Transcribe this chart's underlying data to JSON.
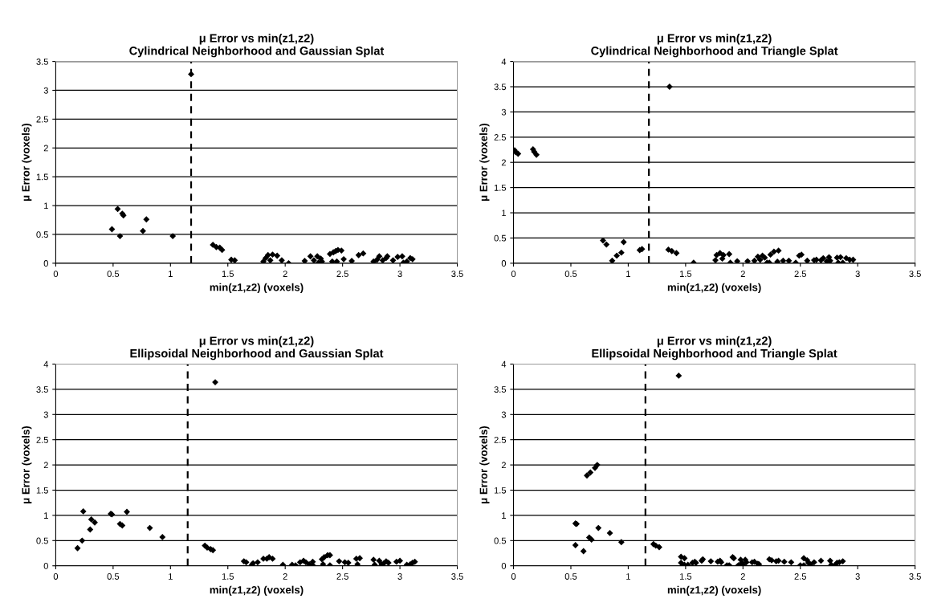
{
  "chart_data": [
    {
      "type": "scatter",
      "title": "μ Error vs min(z1,z2)",
      "subtitle": "Cylindrical Neighborhood and Gaussian Splat",
      "xlabel": "min(z1,z2) (voxels)",
      "ylabel": "μ Error (voxels)",
      "color": "#000000",
      "marker": "diamond",
      "grid": "y",
      "xlim": [
        0,
        3.5
      ],
      "xticks": [
        0,
        0.5,
        1,
        1.5,
        2,
        2.5,
        3,
        3.5
      ],
      "ylim": [
        0,
        3.5
      ],
      "yticks": [
        0,
        0.5,
        1,
        1.5,
        2,
        2.5,
        3,
        3.5
      ],
      "ref_lines": [
        {
          "axis": "x",
          "value": 1.18,
          "color": "#000000",
          "line_style": "dashed"
        }
      ],
      "x": [
        0.49,
        0.54,
        0.56,
        0.58,
        0.59,
        0.76,
        0.79,
        1.02,
        1.18,
        1.37,
        1.4,
        1.43,
        1.45,
        1.53,
        1.56,
        1.81,
        1.83,
        1.85,
        1.89,
        1.93,
        1.87,
        1.97,
        2.03,
        2.17,
        2.22,
        2.25,
        2.28,
        2.29,
        2.31,
        2.32,
        2.39,
        2.42,
        2.44,
        2.46,
        2.49,
        2.41,
        2.45,
        2.51,
        2.58,
        2.64,
        2.68,
        2.77,
        2.8,
        2.82,
        2.85,
        2.88,
        2.89,
        2.94,
        2.98,
        3.02,
        3.03,
        3.06,
        3.09,
        3.11
      ],
      "values": [
        0.59,
        0.94,
        0.47,
        0.86,
        0.83,
        0.56,
        0.76,
        0.47,
        3.28,
        0.32,
        0.28,
        0.27,
        0.23,
        0.06,
        0.05,
        0.03,
        0.09,
        0.14,
        0.15,
        0.13,
        0.05,
        0.05,
        0.0,
        0.04,
        0.12,
        0.05,
        0.12,
        0.01,
        0.08,
        0.03,
        0.16,
        0.19,
        0.21,
        0.23,
        0.22,
        0.03,
        0.03,
        0.07,
        0.04,
        0.14,
        0.17,
        0.03,
        0.06,
        0.12,
        0.05,
        0.09,
        0.12,
        0.05,
        0.11,
        0.12,
        0.01,
        0.03,
        0.09,
        0.07
      ]
    },
    {
      "type": "scatter",
      "title": "μ Error vs min(z1,z2)",
      "subtitle": "Cylindrical Neighborhood and Triangle Splat",
      "xlabel": "min(z1,z2) (voxels)",
      "ylabel": "μ Error (voxels)",
      "color": "#000000",
      "marker": "diamond",
      "grid": "y",
      "xlim": [
        0,
        3.5
      ],
      "xticks": [
        0,
        0.5,
        1,
        1.5,
        2,
        2.5,
        3,
        3.5
      ],
      "ylim": [
        0,
        4
      ],
      "yticks": [
        0,
        0.5,
        1,
        1.5,
        2,
        2.5,
        3,
        3.5,
        4
      ],
      "ref_lines": [
        {
          "axis": "x",
          "value": 1.18,
          "color": "#000000",
          "line_style": "dashed"
        }
      ],
      "x": [
        0.01,
        0.02,
        0.04,
        0.17,
        0.18,
        0.2,
        0.78,
        0.81,
        0.86,
        0.9,
        0.94,
        0.96,
        1.1,
        1.12,
        1.35,
        1.38,
        1.42,
        1.36,
        1.57,
        1.76,
        1.77,
        1.8,
        1.82,
        1.83,
        1.88,
        1.89,
        1.95,
        2.04,
        2.1,
        2.13,
        2.15,
        2.17,
        2.19,
        2.21,
        2.24,
        2.27,
        2.31,
        2.23,
        2.3,
        2.35,
        2.4,
        2.46,
        2.49,
        2.51,
        2.56,
        2.62,
        2.64,
        2.68,
        2.7,
        2.73,
        2.75,
        2.76,
        2.82,
        2.85,
        2.83,
        2.87,
        2.9,
        2.93,
        2.96
      ],
      "values": [
        2.24,
        2.2,
        2.17,
        2.26,
        2.21,
        2.15,
        0.45,
        0.37,
        0.05,
        0.15,
        0.21,
        0.42,
        0.26,
        0.28,
        0.27,
        0.24,
        0.2,
        3.5,
        0.01,
        0.06,
        0.16,
        0.2,
        0.09,
        0.16,
        0.18,
        0.01,
        0.04,
        0.04,
        0.05,
        0.13,
        0.07,
        0.15,
        0.11,
        0.01,
        0.17,
        0.23,
        0.25,
        0.01,
        0.03,
        0.05,
        0.05,
        0.01,
        0.15,
        0.17,
        0.05,
        0.06,
        0.07,
        0.06,
        0.1,
        0.04,
        0.12,
        0.05,
        0.11,
        0.12,
        0.01,
        0.01,
        0.1,
        0.07,
        0.07
      ]
    },
    {
      "type": "scatter",
      "title": "μ Error vs min(z1,z2)",
      "subtitle": "Ellipsoidal Neighborhood and Gaussian Splat",
      "xlabel": "min(z1,z2) (voxels)",
      "ylabel": "μ Error (voxels)",
      "color": "#000000",
      "marker": "diamond",
      "grid": "y",
      "xlim": [
        0,
        3.5
      ],
      "xticks": [
        0,
        0.5,
        1,
        1.5,
        2,
        2.5,
        3,
        3.5
      ],
      "ylim": [
        0,
        4
      ],
      "yticks": [
        0,
        0.5,
        1,
        1.5,
        2,
        2.5,
        3,
        3.5,
        4
      ],
      "ref_lines": [
        {
          "axis": "x",
          "value": 1.15,
          "color": "#000000",
          "line_style": "dashed"
        }
      ],
      "x": [
        0.19,
        0.23,
        0.24,
        0.3,
        0.31,
        0.34,
        0.48,
        0.49,
        0.56,
        0.58,
        0.62,
        0.82,
        0.93,
        1.3,
        1.32,
        1.35,
        1.37,
        1.39,
        1.64,
        1.66,
        1.71,
        1.72,
        1.76,
        1.81,
        1.84,
        1.86,
        1.89,
        1.98,
        2.06,
        2.09,
        2.13,
        2.16,
        2.18,
        2.21,
        2.24,
        2.24,
        2.32,
        2.34,
        2.37,
        2.39,
        2.33,
        2.39,
        2.47,
        2.52,
        2.55,
        2.62,
        2.65,
        2.63,
        2.77,
        2.78,
        2.82,
        2.84,
        2.86,
        2.88,
        2.9,
        2.97,
        3.0,
        3.06,
        3.09,
        3.11,
        3.13
      ],
      "values": [
        0.35,
        0.5,
        1.08,
        0.72,
        0.92,
        0.86,
        1.03,
        1.02,
        0.83,
        0.8,
        1.07,
        0.75,
        0.57,
        0.4,
        0.36,
        0.33,
        0.31,
        3.64,
        0.09,
        0.07,
        0.02,
        0.05,
        0.07,
        0.14,
        0.14,
        0.17,
        0.14,
        0.02,
        0.02,
        0.01,
        0.07,
        0.1,
        0.07,
        0.03,
        0.08,
        0.01,
        0.13,
        0.17,
        0.21,
        0.21,
        0.03,
        0.01,
        0.09,
        0.07,
        0.06,
        0.14,
        0.15,
        0.03,
        0.12,
        0.02,
        0.1,
        0.03,
        0.05,
        0.09,
        0.06,
        0.08,
        0.1,
        0.02,
        0.03,
        0.06,
        0.08
      ]
    },
    {
      "type": "scatter",
      "title": "μ Error vs min(z1,z2)",
      "subtitle": "Ellipsoidal Neighborhood and Triangle Splat",
      "xlabel": "min(z1,z2) (voxels)",
      "ylabel": "μ Error (voxels)",
      "color": "#000000",
      "marker": "diamond",
      "grid": "y",
      "xlim": [
        0,
        3.5
      ],
      "xticks": [
        0,
        0.5,
        1,
        1.5,
        2,
        2.5,
        3,
        3.5
      ],
      "ylim": [
        0,
        4
      ],
      "yticks": [
        0,
        0.5,
        1,
        1.5,
        2,
        2.5,
        3,
        3.5,
        4
      ],
      "ref_lines": [
        {
          "axis": "x",
          "value": 1.15,
          "color": "#000000",
          "line_style": "dashed"
        }
      ],
      "x": [
        0.54,
        0.55,
        0.54,
        0.61,
        0.64,
        0.67,
        0.71,
        0.73,
        0.66,
        0.68,
        0.74,
        0.84,
        0.94,
        1.22,
        1.24,
        1.27,
        1.44,
        1.46,
        1.49,
        1.46,
        1.49,
        1.52,
        1.56,
        1.58,
        1.59,
        1.64,
        1.65,
        1.72,
        1.78,
        1.8,
        1.81,
        1.86,
        1.88,
        1.91,
        1.92,
        1.96,
        1.98,
        1.99,
        2.0,
        2.02,
        2.03,
        2.08,
        2.1,
        2.13,
        2.14,
        2.23,
        2.25,
        2.29,
        2.31,
        2.36,
        2.42,
        2.5,
        2.53,
        2.56,
        2.53,
        2.57,
        2.59,
        2.62,
        2.68,
        2.76,
        2.77,
        2.8,
        2.82,
        2.84,
        2.87
      ],
      "values": [
        0.84,
        0.83,
        0.41,
        0.29,
        1.79,
        1.85,
        1.94,
        2.0,
        0.56,
        0.52,
        0.75,
        0.65,
        0.47,
        0.43,
        0.4,
        0.37,
        3.77,
        0.18,
        0.15,
        0.06,
        0.02,
        0.02,
        0.06,
        0.08,
        0.06,
        0.1,
        0.13,
        0.09,
        0.08,
        0.1,
        0.07,
        0.01,
        0.01,
        0.17,
        0.15,
        0.01,
        0.12,
        0.06,
        0.02,
        0.12,
        0.07,
        0.07,
        0.08,
        0.04,
        0.03,
        0.13,
        0.11,
        0.09,
        0.1,
        0.08,
        0.07,
        0.01,
        0.15,
        0.11,
        0.01,
        0.06,
        0.03,
        0.07,
        0.1,
        0.1,
        0.02,
        0.01,
        0.06,
        0.07,
        0.09
      ]
    }
  ]
}
